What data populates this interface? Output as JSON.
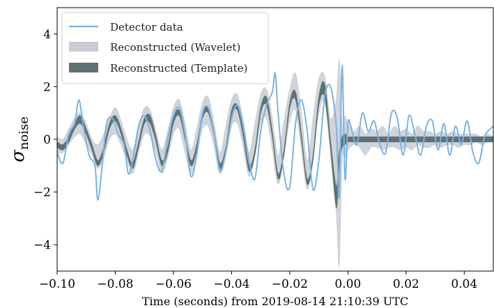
{
  "chart_data": {
    "type": "line",
    "title": "",
    "xlabel": "Time (seconds) from 2019-08-14 21:10:39 UTC",
    "ylabel_main": "σ",
    "ylabel_sub": "noise",
    "xlim": [
      -0.1,
      0.05
    ],
    "ylim": [
      -5,
      5
    ],
    "xticks": [
      -0.1,
      -0.08,
      -0.06,
      -0.04,
      -0.02,
      0.0,
      0.02,
      0.04
    ],
    "xtick_labels": [
      "−0.10",
      "−0.08",
      "−0.06",
      "−0.04",
      "−0.02",
      "0.00",
      "0.02",
      "0.04"
    ],
    "yticks": [
      -4,
      -2,
      0,
      2,
      4
    ],
    "ytick_labels": [
      "−4",
      "−2",
      "0",
      "2",
      "4"
    ],
    "legend_position": "top-left",
    "colors": {
      "detector": "#7ab3e4",
      "wavelet": "#c8ccd4",
      "template": "#5e7273"
    },
    "series": [
      {
        "name": "Detector data",
        "style": "line",
        "x": [
          -0.1,
          -0.098,
          -0.096,
          -0.094,
          -0.0925,
          -0.091,
          -0.089,
          -0.087,
          -0.086,
          -0.0845,
          -0.083,
          -0.081,
          -0.079,
          -0.077,
          -0.0755,
          -0.074,
          -0.072,
          -0.07,
          -0.068,
          -0.066,
          -0.064,
          -0.062,
          -0.06,
          -0.058,
          -0.056,
          -0.054,
          -0.052,
          -0.05,
          -0.048,
          -0.046,
          -0.044,
          -0.042,
          -0.04,
          -0.038,
          -0.036,
          -0.034,
          -0.032,
          -0.03,
          -0.028,
          -0.026,
          -0.025,
          -0.024,
          -0.022,
          -0.02,
          -0.018,
          -0.016,
          -0.014,
          -0.012,
          -0.01,
          -0.008,
          -0.006,
          -0.004,
          -0.003,
          -0.002,
          -0.001,
          0.0,
          0.001,
          0.003,
          0.005,
          0.007,
          0.009,
          0.011,
          0.013,
          0.015,
          0.017,
          0.019,
          0.021,
          0.023,
          0.025,
          0.027,
          0.029,
          0.031,
          0.033,
          0.035,
          0.037,
          0.039,
          0.041,
          0.043,
          0.045,
          0.047,
          0.049,
          0.05
        ],
        "y": [
          -0.5,
          -0.9,
          0.2,
          0.6,
          1.5,
          0.5,
          -0.6,
          -1.0,
          -2.3,
          -1.0,
          0.6,
          0.8,
          0.2,
          -0.2,
          -1.3,
          -0.8,
          0.5,
          0.9,
          0.3,
          -0.8,
          -1.2,
          0.0,
          0.9,
          1.2,
          0.2,
          -1.4,
          -0.6,
          1.0,
          1.2,
          0.2,
          -1.2,
          -0.5,
          0.8,
          1.3,
          0.5,
          -0.8,
          -1.5,
          0.3,
          1.3,
          1.8,
          2.5,
          1.0,
          -1.3,
          -1.8,
          0.6,
          1.5,
          0.3,
          -1.9,
          -0.8,
          1.6,
          2.0,
          0.5,
          -2.2,
          2.8,
          -1.5,
          0.6,
          0.5,
          -0.2,
          1.0,
          0.3,
          0.7,
          -0.2,
          -0.5,
          1.0,
          0.8,
          -0.6,
          0.9,
          0.2,
          -0.6,
          0.5,
          0.7,
          -0.4,
          0.6,
          -0.6,
          0.5,
          -0.2,
          0.7,
          -0.5,
          -0.9,
          0.1,
          0.4,
          0.5
        ]
      },
      {
        "name": "Reconstructed (Wavelet)",
        "style": "band",
        "x": [
          -0.1,
          -0.098,
          -0.096,
          -0.094,
          -0.092,
          -0.09,
          -0.088,
          -0.086,
          -0.084,
          -0.082,
          -0.08,
          -0.078,
          -0.076,
          -0.074,
          -0.072,
          -0.07,
          -0.068,
          -0.066,
          -0.064,
          -0.062,
          -0.06,
          -0.058,
          -0.056,
          -0.054,
          -0.052,
          -0.05,
          -0.048,
          -0.046,
          -0.044,
          -0.042,
          -0.04,
          -0.038,
          -0.036,
          -0.034,
          -0.032,
          -0.03,
          -0.028,
          -0.026,
          -0.024,
          -0.022,
          -0.02,
          -0.018,
          -0.016,
          -0.014,
          -0.012,
          -0.01,
          -0.008,
          -0.006,
          -0.004,
          -0.003,
          -0.002,
          -0.001,
          0.0,
          0.002,
          0.004,
          0.006,
          0.008,
          0.01,
          0.012,
          0.014,
          0.016,
          0.018,
          0.02,
          0.022,
          0.024,
          0.026,
          0.028,
          0.03,
          0.032,
          0.034,
          0.036,
          0.038,
          0.04,
          0.042,
          0.044,
          0.046,
          0.048,
          0.05
        ],
        "y_lower": [
          -0.5,
          -0.5,
          -0.2,
          0.1,
          0.2,
          -0.2,
          -0.6,
          -1.1,
          -0.7,
          0.0,
          0.2,
          -0.2,
          -0.8,
          -1.3,
          -0.5,
          0.2,
          0.1,
          -0.5,
          -1.3,
          -0.7,
          0.2,
          0.4,
          -0.5,
          -1.3,
          -0.6,
          0.4,
          0.5,
          -0.3,
          -1.3,
          -0.6,
          0.5,
          0.6,
          -0.3,
          -1.4,
          -0.6,
          0.6,
          0.8,
          -0.4,
          -1.7,
          -0.6,
          0.7,
          1.1,
          -0.4,
          -1.9,
          -0.7,
          1.0,
          1.4,
          -0.6,
          -2.8,
          -4.8,
          -0.8,
          -0.7,
          -0.4,
          -0.2,
          -0.3,
          -0.6,
          -0.3,
          -0.3,
          -0.4,
          -0.3,
          -0.3,
          -0.4,
          -0.3,
          -0.4,
          -0.2,
          -0.3,
          -0.3,
          -0.2,
          -0.3,
          -0.2,
          -0.2,
          -0.3,
          -0.2,
          -0.2,
          -0.1,
          -0.2,
          -0.1,
          -0.1
        ],
        "y_upper": [
          0.1,
          0.0,
          0.4,
          0.8,
          1.0,
          0.6,
          0.0,
          -0.2,
          0.2,
          0.8,
          1.2,
          0.7,
          0.0,
          -0.4,
          0.4,
          1.2,
          1.1,
          0.3,
          -0.4,
          0.3,
          1.2,
          1.5,
          0.6,
          -0.4,
          0.4,
          1.4,
          1.6,
          0.6,
          -0.5,
          0.5,
          1.5,
          1.7,
          0.7,
          -0.5,
          0.6,
          1.7,
          1.9,
          0.8,
          -0.6,
          0.7,
          1.9,
          2.5,
          1.0,
          -0.8,
          0.8,
          2.3,
          2.4,
          0.8,
          1.5,
          3.0,
          0.6,
          0.9,
          0.6,
          0.3,
          0.5,
          0.2,
          0.4,
          0.3,
          0.5,
          0.2,
          0.5,
          0.3,
          0.4,
          0.2,
          0.5,
          0.3,
          0.3,
          0.2,
          0.3,
          0.2,
          0.3,
          0.2,
          0.2,
          0.2,
          0.2,
          0.1,
          0.2,
          0.1
        ]
      },
      {
        "name": "Reconstructed (Template)",
        "style": "band",
        "x": [
          -0.1,
          -0.098,
          -0.096,
          -0.094,
          -0.092,
          -0.09,
          -0.088,
          -0.086,
          -0.084,
          -0.082,
          -0.08,
          -0.078,
          -0.076,
          -0.074,
          -0.072,
          -0.07,
          -0.068,
          -0.066,
          -0.064,
          -0.062,
          -0.06,
          -0.058,
          -0.056,
          -0.054,
          -0.052,
          -0.05,
          -0.048,
          -0.046,
          -0.044,
          -0.042,
          -0.04,
          -0.038,
          -0.036,
          -0.034,
          -0.032,
          -0.03,
          -0.028,
          -0.026,
          -0.024,
          -0.022,
          -0.02,
          -0.018,
          -0.016,
          -0.014,
          -0.012,
          -0.01,
          -0.008,
          -0.006,
          -0.004,
          -0.003,
          -0.002,
          -0.001,
          0.0,
          0.002,
          0.004,
          0.006,
          0.008,
          0.01,
          0.012,
          0.014,
          0.016,
          0.018,
          0.02,
          0.022,
          0.024,
          0.026,
          0.028,
          0.03,
          0.032,
          0.034,
          0.036,
          0.038,
          0.04,
          0.042,
          0.044,
          0.046,
          0.048,
          0.05
        ],
        "y_lower": [
          -0.3,
          -0.4,
          -0.1,
          0.4,
          0.6,
          0.2,
          -0.4,
          -1.0,
          -0.5,
          0.4,
          0.7,
          0.2,
          -0.6,
          -1.1,
          -0.3,
          0.6,
          0.6,
          -0.1,
          -1.0,
          -0.5,
          0.6,
          0.9,
          0.0,
          -1.0,
          -0.4,
          0.8,
          1.0,
          0.1,
          -1.1,
          -0.5,
          0.9,
          1.1,
          0.1,
          -1.2,
          -0.6,
          1.0,
          1.3,
          0.1,
          -1.5,
          -0.6,
          1.2,
          1.5,
          0.0,
          -1.7,
          -0.8,
          1.3,
          1.6,
          -0.3,
          -2.6,
          -0.9,
          -0.3,
          -0.2,
          -0.1,
          -0.1,
          -0.1,
          -0.1,
          -0.1,
          -0.1,
          -0.1,
          -0.1,
          -0.1,
          -0.1,
          -0.1,
          -0.1,
          -0.1,
          -0.1,
          -0.1,
          -0.1,
          -0.1,
          -0.1,
          -0.1,
          -0.1,
          -0.1,
          -0.1,
          -0.1,
          -0.1,
          -0.1,
          -0.1
        ],
        "y_upper": [
          -0.1,
          -0.2,
          0.1,
          0.6,
          0.9,
          0.4,
          -0.2,
          -0.8,
          -0.3,
          0.6,
          0.9,
          0.4,
          -0.4,
          -0.9,
          -0.1,
          0.8,
          0.9,
          0.1,
          -0.8,
          -0.3,
          0.8,
          1.1,
          0.2,
          -0.8,
          -0.2,
          1.0,
          1.2,
          0.3,
          -0.9,
          -0.3,
          1.1,
          1.3,
          0.3,
          -1.0,
          -0.4,
          1.2,
          1.6,
          0.3,
          -1.3,
          -0.4,
          1.4,
          1.8,
          0.2,
          -1.5,
          -0.6,
          1.6,
          2.1,
          0.0,
          -1.8,
          -0.5,
          0.1,
          0.2,
          0.1,
          0.1,
          0.1,
          0.1,
          0.1,
          0.1,
          0.1,
          0.1,
          0.1,
          0.1,
          0.1,
          0.1,
          0.1,
          0.1,
          0.1,
          0.1,
          0.1,
          0.1,
          0.1,
          0.1,
          0.1,
          0.1,
          0.1,
          0.1,
          0.1,
          0.1
        ]
      }
    ]
  }
}
